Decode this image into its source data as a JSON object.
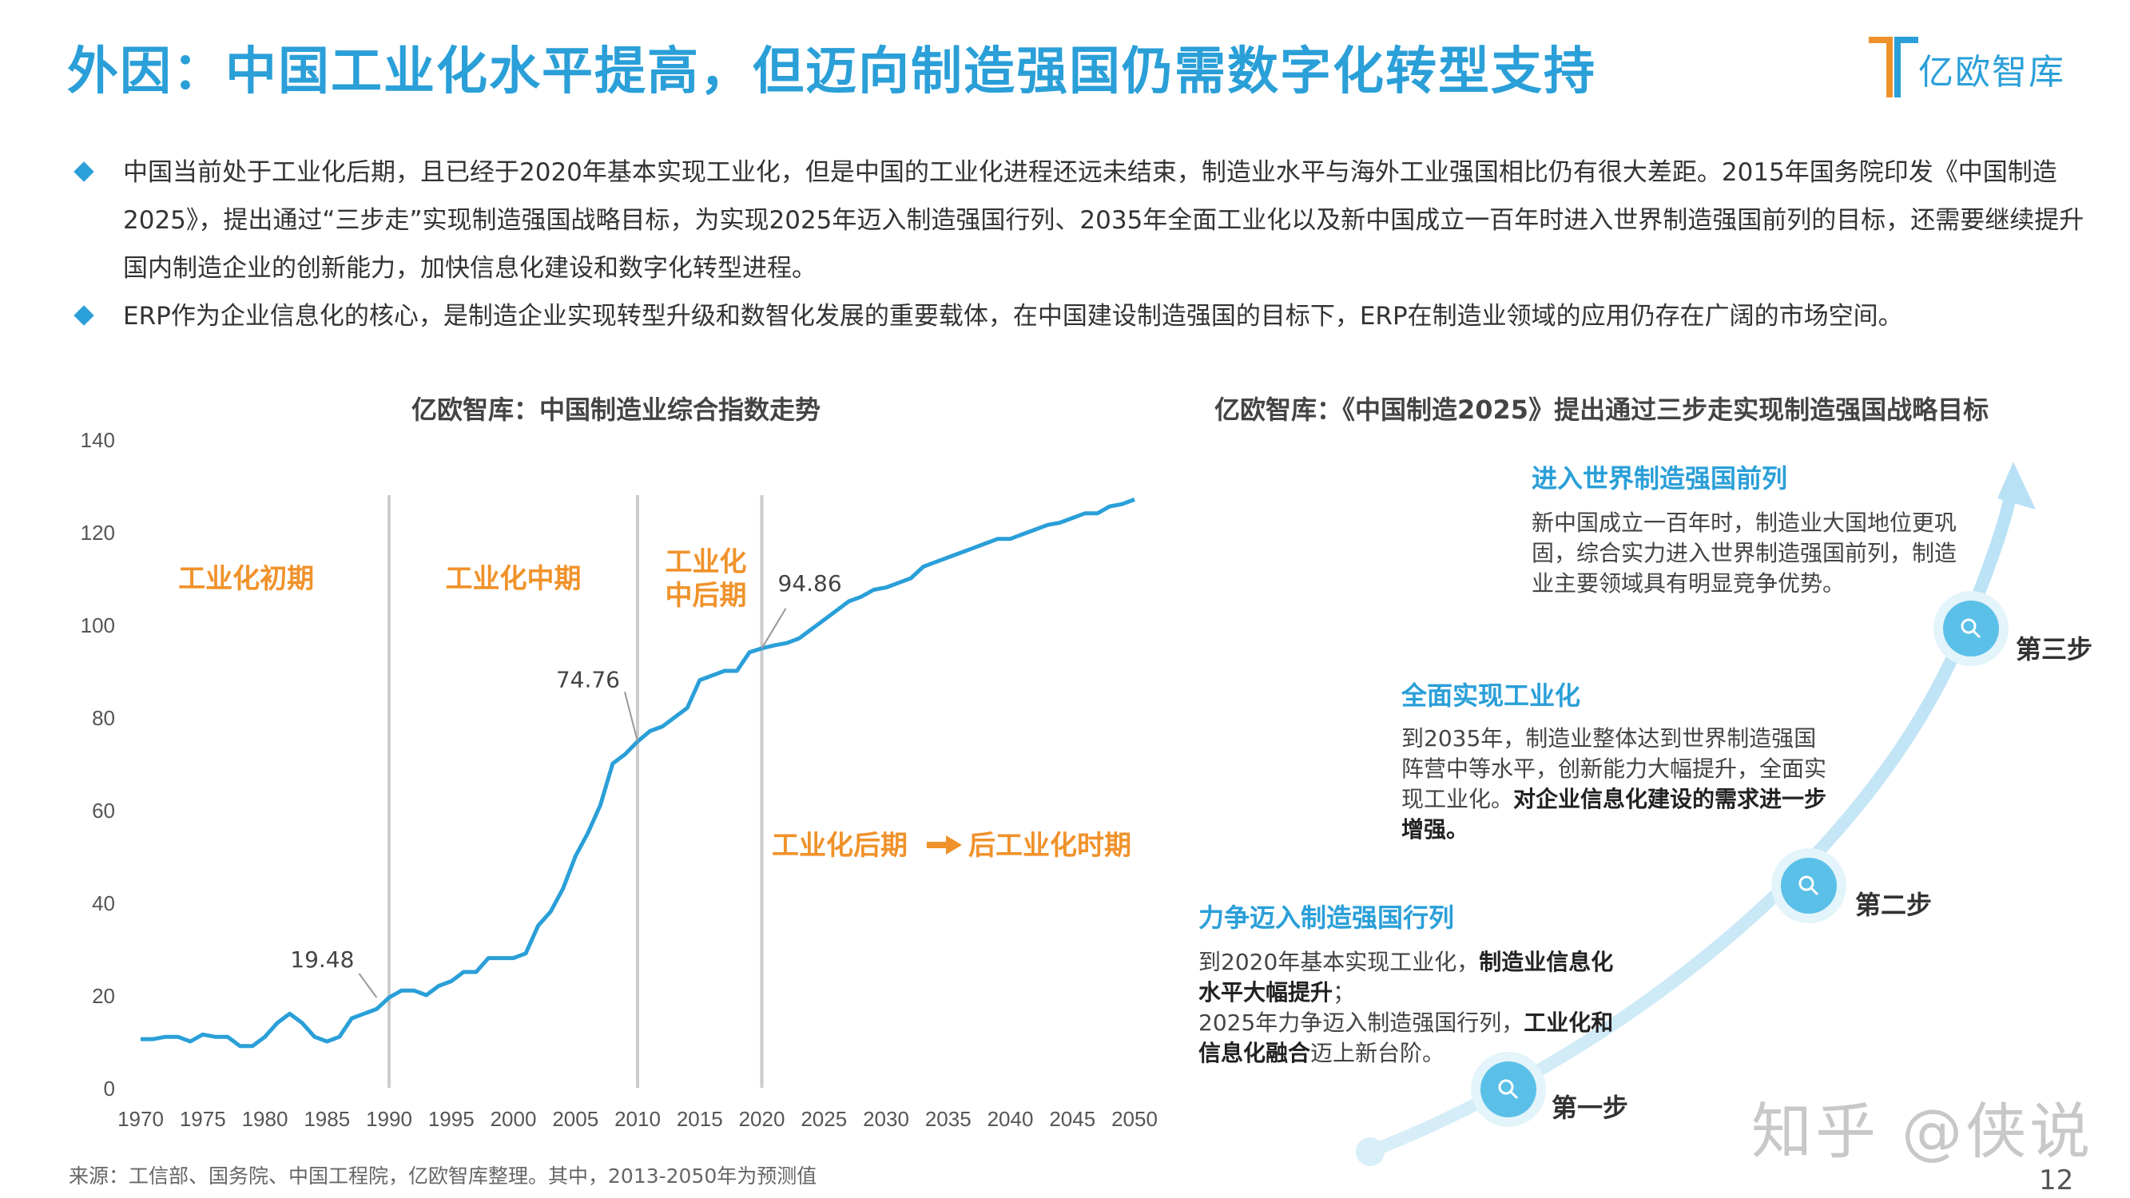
{
  "header": {
    "title": "外因：中国工业化水平提高，但迈向制造强国仍需数字化转型支持",
    "logo_text": "亿欧智库"
  },
  "bullets": [
    "中国当前处于工业化后期，且已经于2020年基本实现工业化，但是中国的工业化进程还远未结束，制造业水平与海外工业强国相比仍有很大差距。2015年国务院印发《中国制造2025》，提出通过“三步走”实现制造强国战略目标，为实现2025年迈入制造强国行列、2035年全面工业化以及新中国成立一百年时进入世界制造强国前列的目标，还需要继续提升国内制造企业的创新能力，加快信息化建设和数字化转型进程。",
    "ERP作为企业信息化的核心，是制造企业实现转型升级和数智化发展的重要载体，在中国建设制造强国的目标下，ERP在制造业领域的应用仍存在广阔的市场空间。"
  ],
  "colors": {
    "accent": "#2a9fd8",
    "line": "#2a9fd8",
    "phase": "#f0922b",
    "divider": "#cccccc"
  },
  "chart_data": {
    "type": "line",
    "title": "亿欧智库：中国制造业综合指数走势",
    "xlabel": "",
    "ylabel": "",
    "ylim": [
      0,
      140
    ],
    "xlim": [
      1970,
      2050
    ],
    "y_ticks": [
      "0",
      "20",
      "40",
      "60",
      "80",
      "100",
      "120",
      "140"
    ],
    "x_ticks": [
      "1970",
      "1975",
      "1980",
      "1985",
      "1990",
      "1995",
      "2000",
      "2005",
      "2010",
      "2015",
      "2020",
      "2025",
      "2030",
      "2035",
      "2040",
      "2045",
      "2050"
    ],
    "dividers": [
      1990,
      2010,
      2020
    ],
    "phases": [
      {
        "lines": [
          "工业化初期"
        ],
        "x": 1978.5,
        "y": 110
      },
      {
        "lines": [
          "工业化中期"
        ],
        "x": 2000,
        "y": 110
      },
      {
        "lines": [
          "工业化",
          "中后期"
        ],
        "x": 2015.5,
        "y": 110
      }
    ],
    "later_phase": {
      "from": "工业化后期",
      "to": "后工业化时期"
    },
    "annotations": [
      {
        "label": "19.48",
        "x": 1989,
        "y": 19.48
      },
      {
        "label": "74.76",
        "x": 2010,
        "y": 74.76
      },
      {
        "label": "94.86",
        "x": 2020,
        "y": 94.86
      }
    ],
    "x": [
      1970,
      1971,
      1972,
      1973,
      1974,
      1975,
      1976,
      1977,
      1978,
      1979,
      1980,
      1981,
      1982,
      1983,
      1984,
      1985,
      1986,
      1987,
      1988,
      1989,
      1990,
      1991,
      1992,
      1993,
      1994,
      1995,
      1996,
      1997,
      1998,
      1999,
      2000,
      2001,
      2002,
      2003,
      2004,
      2005,
      2006,
      2007,
      2008,
      2009,
      2010,
      2011,
      2012,
      2013,
      2014,
      2015,
      2016,
      2017,
      2018,
      2019,
      2020,
      2021,
      2022,
      2023,
      2024,
      2025,
      2026,
      2027,
      2028,
      2029,
      2030,
      2031,
      2032,
      2033,
      2034,
      2035,
      2036,
      2037,
      2038,
      2039,
      2040,
      2041,
      2042,
      2043,
      2044,
      2045,
      2046,
      2047,
      2048,
      2049,
      2050
    ],
    "values": [
      10.5,
      10.5,
      11,
      11,
      10,
      11.5,
      11,
      11,
      9,
      9,
      11,
      14,
      16,
      14,
      11,
      10,
      11,
      15,
      16,
      17,
      19.48,
      21,
      21,
      20,
      22,
      23,
      25,
      25,
      28,
      28,
      28,
      29,
      35,
      38,
      43,
      50,
      55,
      61,
      70,
      72,
      74.76,
      77,
      78,
      80,
      82,
      88,
      89,
      90,
      90,
      94,
      94.86,
      95.5,
      96,
      97,
      99,
      101,
      103,
      105,
      106,
      107.5,
      108,
      109,
      110,
      112.5,
      113.5,
      114.5,
      115.5,
      116.5,
      117.5,
      118.5,
      118.5,
      119.5,
      120.5,
      121.5,
      122,
      123,
      124,
      124,
      125.5,
      126,
      127
    ]
  },
  "roadmap": {
    "title": "亿欧智库：《中国制造2025》提出通过三步走实现制造强国战略目标",
    "steps": [
      {
        "label": "第一步",
        "heading": "力争迈入制造强国行列",
        "body": [
          {
            "text": "到2020年基本实现工业化，",
            "bold": false
          },
          {
            "text": "制造业信息化水平大幅提升",
            "bold": true
          },
          {
            "text": "；",
            "bold": false
          },
          {
            "text": "2025年力争迈入制造强国行列，",
            "bold": false
          },
          {
            "text": "工业化和信息化融合",
            "bold": true
          },
          {
            "text": "迈上新台阶。",
            "bold": false
          }
        ]
      },
      {
        "label": "第二步",
        "heading": "全面实现工业化",
        "body": [
          {
            "text": "到2035年，制造业整体达到世界制造强国阵营中等水平，创新能力大幅提升，全面实现工业化。",
            "bold": false
          },
          {
            "text": "对企业信息化建设的需求进一步增强。",
            "bold": true
          }
        ]
      },
      {
        "label": "第三步",
        "heading": "进入世界制造强国前列",
        "body": [
          {
            "text": "新中国成立一百年时，制造业大国地位更巩固，综合实力进入世界制造强国前列，制造业主要领域具有明显竞争优势。",
            "bold": false
          }
        ]
      }
    ]
  },
  "footer": {
    "source": "来源：工信部、国务院、中国工程院，亿欧智库整理。其中，2013-2050年为预测值",
    "page": "12",
    "watermark": "知乎 @侠说"
  }
}
